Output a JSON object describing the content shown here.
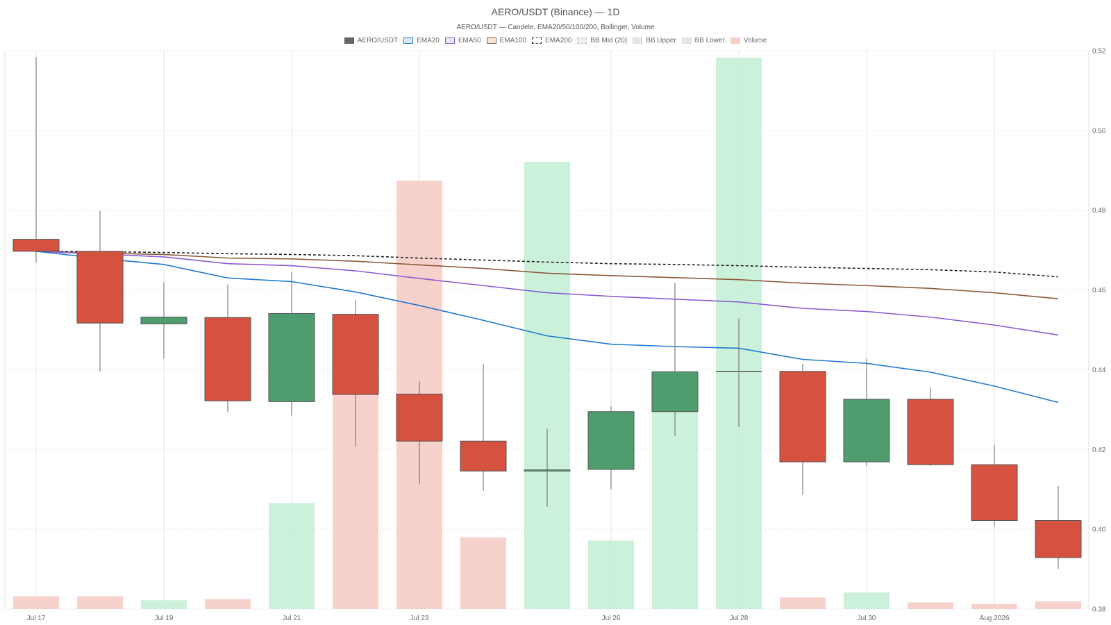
{
  "chart_data": {
    "type": "candlestick",
    "title": "AERO/USDT (Binance) — 1D",
    "subtitle": "AERO/USDT — Candele, EMA20/50/100/200, Bollinger, Volume",
    "legend": [
      {
        "label": "AERO/USDT",
        "fill": "#666666",
        "stroke": "#555555",
        "dashed": false
      },
      {
        "label": "EMA20",
        "fill": "#dbe9f7",
        "stroke": "#1f78d1",
        "dashed": false
      },
      {
        "label": "EMA50",
        "fill": "#ece4f7",
        "stroke": "#8a5cd6",
        "dashed": false
      },
      {
        "label": "EMA100",
        "fill": "#f3e7dd",
        "stroke": "#8b5a3c",
        "dashed": false
      },
      {
        "label": "EMA200",
        "fill": "#ffffff",
        "stroke": "#222222",
        "dashed": true
      },
      {
        "label": "BB Mid (20)",
        "fill": "#eeeeee",
        "stroke": "#bbbbbb",
        "dashed": true
      },
      {
        "label": "BB Upper",
        "fill": "#e6e6e6",
        "stroke": "#dddddd",
        "dashed": false
      },
      {
        "label": "BB Lower",
        "fill": "#e6e6e6",
        "stroke": "#dddddd",
        "dashed": false
      },
      {
        "label": "Volume",
        "fill": "#f7cfc8",
        "stroke": "#f7cfc8",
        "dashed": false
      }
    ],
    "y_axis": {
      "min": 0.38,
      "max": 0.52,
      "ticks": [
        "0.38",
        "0.40",
        "0.42",
        "0.44",
        "0.46",
        "0.48",
        "0.50",
        "0.52"
      ],
      "position": "right"
    },
    "x_ticks": [
      {
        "index": 0,
        "label": "Jul 17"
      },
      {
        "index": 2,
        "label": "Jul 19"
      },
      {
        "index": 4,
        "label": "Jul 21"
      },
      {
        "index": 6,
        "label": "Jul 23"
      },
      {
        "index": 9,
        "label": "Jul 26"
      },
      {
        "index": 11,
        "label": "Jul 28"
      },
      {
        "index": 13,
        "label": "Jul 30"
      },
      {
        "index": 15,
        "label": "Aug 2026"
      }
    ],
    "candles": [
      {
        "open": 0.4727,
        "high": 0.5184,
        "low": 0.4669,
        "close": 0.4697,
        "volume": 0.023
      },
      {
        "open": 0.4697,
        "high": 0.4798,
        "low": 0.4396,
        "close": 0.4517,
        "volume": 0.023
      },
      {
        "open": 0.4515,
        "high": 0.4619,
        "low": 0.4428,
        "close": 0.4532,
        "volume": 0.016
      },
      {
        "open": 0.4531,
        "high": 0.4614,
        "low": 0.4294,
        "close": 0.4322,
        "volume": 0.018
      },
      {
        "open": 0.432,
        "high": 0.4644,
        "low": 0.4285,
        "close": 0.4541,
        "volume": 0.192
      },
      {
        "open": 0.4539,
        "high": 0.4575,
        "low": 0.4208,
        "close": 0.4338,
        "volume": 0.467
      },
      {
        "open": 0.4339,
        "high": 0.4372,
        "low": 0.4113,
        "close": 0.4221,
        "volume": 0.777
      },
      {
        "open": 0.4221,
        "high": 0.4414,
        "low": 0.4096,
        "close": 0.4146,
        "volume": 0.13
      },
      {
        "open": 0.4146,
        "high": 0.4252,
        "low": 0.4056,
        "close": 0.4149,
        "volume": 0.811
      },
      {
        "open": 0.415,
        "high": 0.4308,
        "low": 0.41,
        "close": 0.4295,
        "volume": 0.124
      },
      {
        "open": 0.4295,
        "high": 0.4618,
        "low": 0.4234,
        "close": 0.4395,
        "volume": 0.372
      },
      {
        "open": 0.4395,
        "high": 0.4529,
        "low": 0.4256,
        "close": 0.4396,
        "volume": 1.0
      },
      {
        "open": 0.4396,
        "high": 0.4415,
        "low": 0.4086,
        "close": 0.4169,
        "volume": 0.021
      },
      {
        "open": 0.4169,
        "high": 0.4427,
        "low": 0.4159,
        "close": 0.4326,
        "volume": 0.03
      },
      {
        "open": 0.4326,
        "high": 0.4356,
        "low": 0.4159,
        "close": 0.4162,
        "volume": 0.012
      },
      {
        "open": 0.4162,
        "high": 0.4212,
        "low": 0.4006,
        "close": 0.4022,
        "volume": 0.009
      },
      {
        "open": 0.4022,
        "high": 0.4108,
        "low": 0.3901,
        "close": 0.3929,
        "volume": 0.014
      }
    ],
    "ema20": [
      0.4697,
      0.4679,
      0.4664,
      0.463,
      0.4621,
      0.4595,
      0.4561,
      0.4524,
      0.4485,
      0.4464,
      0.4458,
      0.4454,
      0.4426,
      0.4416,
      0.4394,
      0.4359,
      0.4318
    ],
    "ema50": [
      0.4697,
      0.469,
      0.4683,
      0.4666,
      0.4661,
      0.4648,
      0.4629,
      0.4611,
      0.4593,
      0.4584,
      0.4577,
      0.457,
      0.4554,
      0.4546,
      0.4532,
      0.4512,
      0.4487
    ],
    "ema100": [
      0.4697,
      0.4692,
      0.4689,
      0.468,
      0.4678,
      0.4672,
      0.4663,
      0.4654,
      0.4642,
      0.4636,
      0.4631,
      0.4626,
      0.4617,
      0.4611,
      0.4604,
      0.4593,
      0.4578
    ],
    "ema200": [
      0.4697,
      0.4696,
      0.4694,
      0.4691,
      0.4689,
      0.4686,
      0.468,
      0.4675,
      0.467,
      0.4666,
      0.4664,
      0.4661,
      0.4657,
      0.4654,
      0.4651,
      0.4645,
      0.4633
    ],
    "colors": {
      "up": "#4f9d6f",
      "down": "#d55241",
      "up_volume": "#c8f0d8",
      "down_volume": "#f7cfc8",
      "grid": "#e6e6e6",
      "ema20": "#1f78d1",
      "ema50": "#8a5cd6",
      "ema100": "#8b5a3c",
      "ema200": "#222222"
    },
    "grid": true,
    "legend_position": "top-center"
  }
}
